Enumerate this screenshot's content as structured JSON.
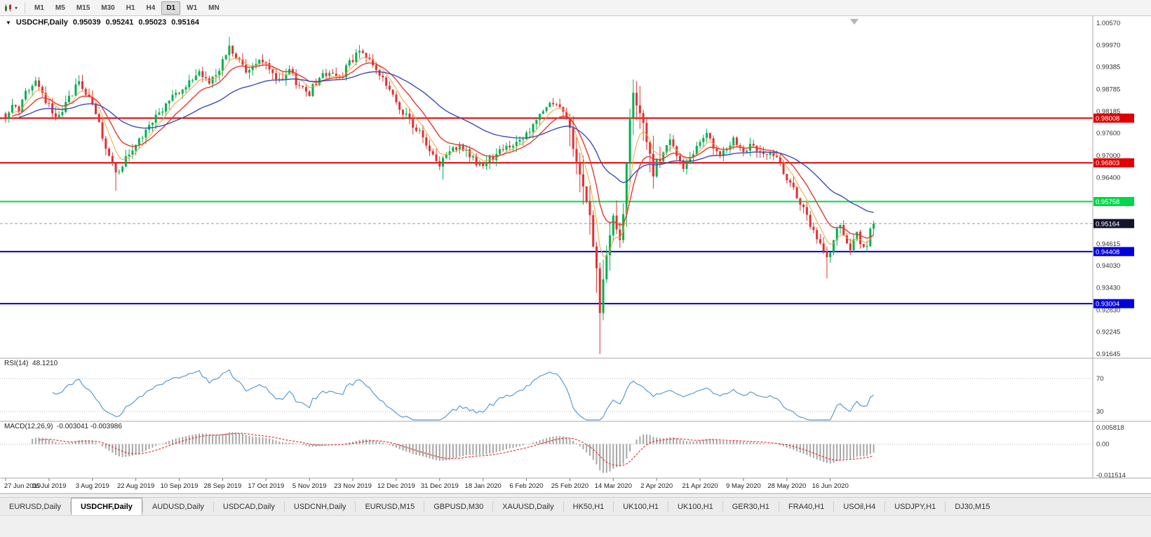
{
  "toolbar": {
    "timeframes": [
      "M1",
      "M5",
      "M15",
      "M30",
      "H1",
      "H4",
      "D1",
      "W1",
      "MN"
    ],
    "active_timeframe": "D1"
  },
  "chart": {
    "header": {
      "symbol": "USDCHF,Daily",
      "open": "0.95039",
      "high": "0.95241",
      "low": "0.95023",
      "close": "0.95164"
    },
    "price_axis_labels": [
      "1.00570",
      "0.99970",
      "0.99385",
      "0.98785",
      "0.98185",
      "0.97600",
      "0.97000",
      "0.96400",
      "0.94615",
      "0.94030",
      "0.93430",
      "0.92830",
      "0.92245",
      "0.91645"
    ],
    "date_axis_labels": [
      "27 Jun 2019",
      "16 Jul 2019",
      "3 Aug 2019",
      "22 Aug 2019",
      "10 Sep 2019",
      "28 Sep 2019",
      "17 Oct 2019",
      "5 Nov 2019",
      "23 Nov 2019",
      "12 Dec 2019",
      "31 Dec 2019",
      "18 Jan 2020",
      "6 Feb 2020",
      "25 Feb 2020",
      "14 Mar 2020",
      "2 Apr 2020",
      "21 Apr 2020",
      "9 May 2020",
      "28 May 2020",
      "16 Jun 2020"
    ],
    "hlines": [
      {
        "price": 0.98008,
        "label": "0.98008",
        "color": "#e00000"
      },
      {
        "price": 0.96803,
        "label": "0.96803",
        "color": "#e00000"
      },
      {
        "price": 0.95758,
        "label": "0.95758",
        "color": "#00d84a"
      },
      {
        "price": 0.94408,
        "label": "0.94408",
        "color": "#0000dd"
      },
      {
        "price": 0.93004,
        "label": "0.93004",
        "color": "#0000dd"
      }
    ],
    "bid_tag": {
      "price": 0.95164,
      "label": "0.95164",
      "color": "#14142e"
    },
    "colors": {
      "up": "#00b050",
      "down": "#e03131",
      "ma_fast": "#f2a33c",
      "ma_mid": "#e53935",
      "ma_slow": "#3b4db8",
      "background": "#ffffff"
    }
  },
  "rsi": {
    "name": "RSI(14)",
    "value": "48.1210",
    "period": 14,
    "color": "#5b9bd5",
    "levels": [
      {
        "value": 70,
        "label": "70"
      },
      {
        "value": 30,
        "label": "30"
      }
    ]
  },
  "macd": {
    "name": "MACD(12,26,9)",
    "values": "-0.003041 -0.003986",
    "fast": 12,
    "slow": 26,
    "signal": 9,
    "hist_color": "#a6a6a6",
    "signal_color": "#e53935",
    "axis_labels": [
      {
        "value": 0.005818,
        "label": "0.005818"
      },
      {
        "value": 0,
        "label": "0.00"
      },
      {
        "value": -0.011514,
        "label": "-0.011514"
      }
    ]
  },
  "bottom_tabs": {
    "items": [
      {
        "label": "EURUSD,Daily",
        "active": false
      },
      {
        "label": "USDCHF,Daily",
        "active": true
      },
      {
        "label": "AUDUSD,Daily",
        "active": false
      },
      {
        "label": "USDCAD,Daily",
        "active": false
      },
      {
        "label": "USDCNH,Daily",
        "active": false
      },
      {
        "label": "EURUSD,M15",
        "active": false
      },
      {
        "label": "GBPUSD,M30",
        "active": false
      },
      {
        "label": "XAUUSD,Daily",
        "active": false
      },
      {
        "label": "HK50,H1",
        "active": false
      },
      {
        "label": "UK100,H1",
        "active": false
      },
      {
        "label": "UK100,H1",
        "active": false
      },
      {
        "label": "GER30,H1",
        "active": false
      },
      {
        "label": "FRA40,H1",
        "active": false
      },
      {
        "label": "USOil,H4",
        "active": false
      },
      {
        "label": "USDJPY,H1",
        "active": false
      },
      {
        "label": "DJ30,M15",
        "active": false
      }
    ]
  },
  "chart_data": {
    "type": "candlestick",
    "symbol": "USDCHF",
    "timeframe": "D1",
    "bars_count": 261,
    "bars_per_label": 13,
    "last_close": 0.95164,
    "price_range": {
      "max": 1.0057,
      "min": 0.91645
    },
    "close_anchors": [
      [
        0,
        0.98
      ],
      [
        2,
        0.9845
      ],
      [
        4,
        0.981
      ],
      [
        6,
        0.9875
      ],
      [
        9,
        0.99
      ],
      [
        11,
        0.986
      ],
      [
        13,
        0.984
      ],
      [
        15,
        0.9795
      ],
      [
        17,
        0.9815
      ],
      [
        19,
        0.9855
      ],
      [
        22,
        0.9895
      ],
      [
        24,
        0.9865
      ],
      [
        26,
        0.984
      ],
      [
        28,
        0.978
      ],
      [
        30,
        0.9725
      ],
      [
        33,
        0.965
      ],
      [
        36,
        0.969
      ],
      [
        39,
        0.973
      ],
      [
        42,
        0.977
      ],
      [
        45,
        0.9805
      ],
      [
        48,
        0.984
      ],
      [
        52,
        0.987
      ],
      [
        55,
        0.9905
      ],
      [
        58,
        0.9925
      ],
      [
        61,
        0.99
      ],
      [
        63,
        0.9925
      ],
      [
        65,
        0.995
      ],
      [
        67,
        0.999
      ],
      [
        70,
        0.996
      ],
      [
        72,
        0.9925
      ],
      [
        75,
        0.9945
      ],
      [
        78,
        0.9955
      ],
      [
        80,
        0.992
      ],
      [
        82,
        0.99
      ],
      [
        85,
        0.993
      ],
      [
        88,
        0.9885
      ],
      [
        91,
        0.987
      ],
      [
        94,
        0.991
      ],
      [
        97,
        0.9925
      ],
      [
        100,
        0.9905
      ],
      [
        103,
        0.995
      ],
      [
        106,
        0.9985
      ],
      [
        109,
        0.9955
      ],
      [
        112,
        0.9915
      ],
      [
        115,
        0.9875
      ],
      [
        117,
        0.984
      ],
      [
        119,
        0.9815
      ],
      [
        121,
        0.9795
      ],
      [
        124,
        0.976
      ],
      [
        127,
        0.9715
      ],
      [
        130,
        0.9675
      ],
      [
        133,
        0.9705
      ],
      [
        136,
        0.973
      ],
      [
        139,
        0.9698
      ],
      [
        141,
        0.968
      ],
      [
        143,
        0.9668
      ],
      [
        145,
        0.969
      ],
      [
        147,
        0.9705
      ],
      [
        150,
        0.9735
      ],
      [
        152,
        0.9718
      ],
      [
        154,
        0.974
      ],
      [
        156,
        0.9758
      ],
      [
        158,
        0.978
      ],
      [
        160,
        0.9805
      ],
      [
        162,
        0.9825
      ],
      [
        164,
        0.984
      ],
      [
        166,
        0.9825
      ],
      [
        168,
        0.9795
      ],
      [
        169,
        0.977
      ],
      [
        170,
        0.973
      ],
      [
        171,
        0.969
      ],
      [
        172,
        0.9655
      ],
      [
        173,
        0.962
      ],
      [
        174,
        0.9575
      ],
      [
        175,
        0.9525
      ],
      [
        176,
        0.9465
      ],
      [
        177,
        0.9395
      ],
      [
        178,
        0.9285
      ],
      [
        179,
        0.9355
      ],
      [
        180,
        0.943
      ],
      [
        181,
        0.95
      ],
      [
        182,
        0.955
      ],
      [
        183,
        0.9498
      ],
      [
        184,
        0.9462
      ],
      [
        185,
        0.955
      ],
      [
        186,
        0.969
      ],
      [
        187,
        0.98
      ],
      [
        188,
        0.9872
      ],
      [
        189,
        0.9845
      ],
      [
        190,
        0.9818
      ],
      [
        191,
        0.9775
      ],
      [
        192,
        0.9735
      ],
      [
        193,
        0.969
      ],
      [
        194,
        0.965
      ],
      [
        195,
        0.9675
      ],
      [
        197,
        0.9718
      ],
      [
        199,
        0.974
      ],
      [
        201,
        0.9692
      ],
      [
        203,
        0.9665
      ],
      [
        205,
        0.97
      ],
      [
        207,
        0.9722
      ],
      [
        210,
        0.9758
      ],
      [
        212,
        0.9725
      ],
      [
        214,
        0.97
      ],
      [
        216,
        0.9718
      ],
      [
        218,
        0.9742
      ],
      [
        221,
        0.9712
      ],
      [
        223,
        0.9732
      ],
      [
        225,
        0.9715
      ],
      [
        227,
        0.9695
      ],
      [
        229,
        0.9714
      ],
      [
        231,
        0.9692
      ],
      [
        233,
        0.966
      ],
      [
        236,
        0.9606
      ],
      [
        238,
        0.9572
      ],
      [
        240,
        0.9532
      ],
      [
        242,
        0.9492
      ],
      [
        244,
        0.9464
      ],
      [
        246,
        0.9428
      ],
      [
        247,
        0.9446
      ],
      [
        248,
        0.9476
      ],
      [
        249,
        0.95
      ],
      [
        250,
        0.9516
      ],
      [
        251,
        0.9494
      ],
      [
        252,
        0.947
      ],
      [
        253,
        0.945
      ],
      [
        254,
        0.9466
      ],
      [
        255,
        0.9486
      ],
      [
        256,
        0.947
      ],
      [
        257,
        0.9455
      ],
      [
        258,
        0.9446
      ],
      [
        259,
        0.9504
      ],
      [
        260,
        0.95164
      ]
    ],
    "extremes": [
      {
        "bar": 33,
        "low": 0.9605
      },
      {
        "bar": 67,
        "high": 1.002
      },
      {
        "bar": 106,
        "high": 0.9998
      },
      {
        "bar": 131,
        "low": 0.9635
      },
      {
        "bar": 177,
        "low": 0.933
      },
      {
        "bar": 178,
        "low": 0.91645
      },
      {
        "bar": 188,
        "high": 0.9905
      },
      {
        "bar": 246,
        "low": 0.9368
      },
      {
        "bar": 260,
        "high": 0.95241,
        "low": 0.95023
      }
    ],
    "noise": {
      "close": 0.001,
      "wick": 0.0018,
      "crash_from": 169,
      "crash_to": 196,
      "crash_close_mult": 1.6,
      "crash_wick_mult": 3.0
    },
    "ma_periods": {
      "fast": 6,
      "mid": 13,
      "slow": 40
    }
  }
}
